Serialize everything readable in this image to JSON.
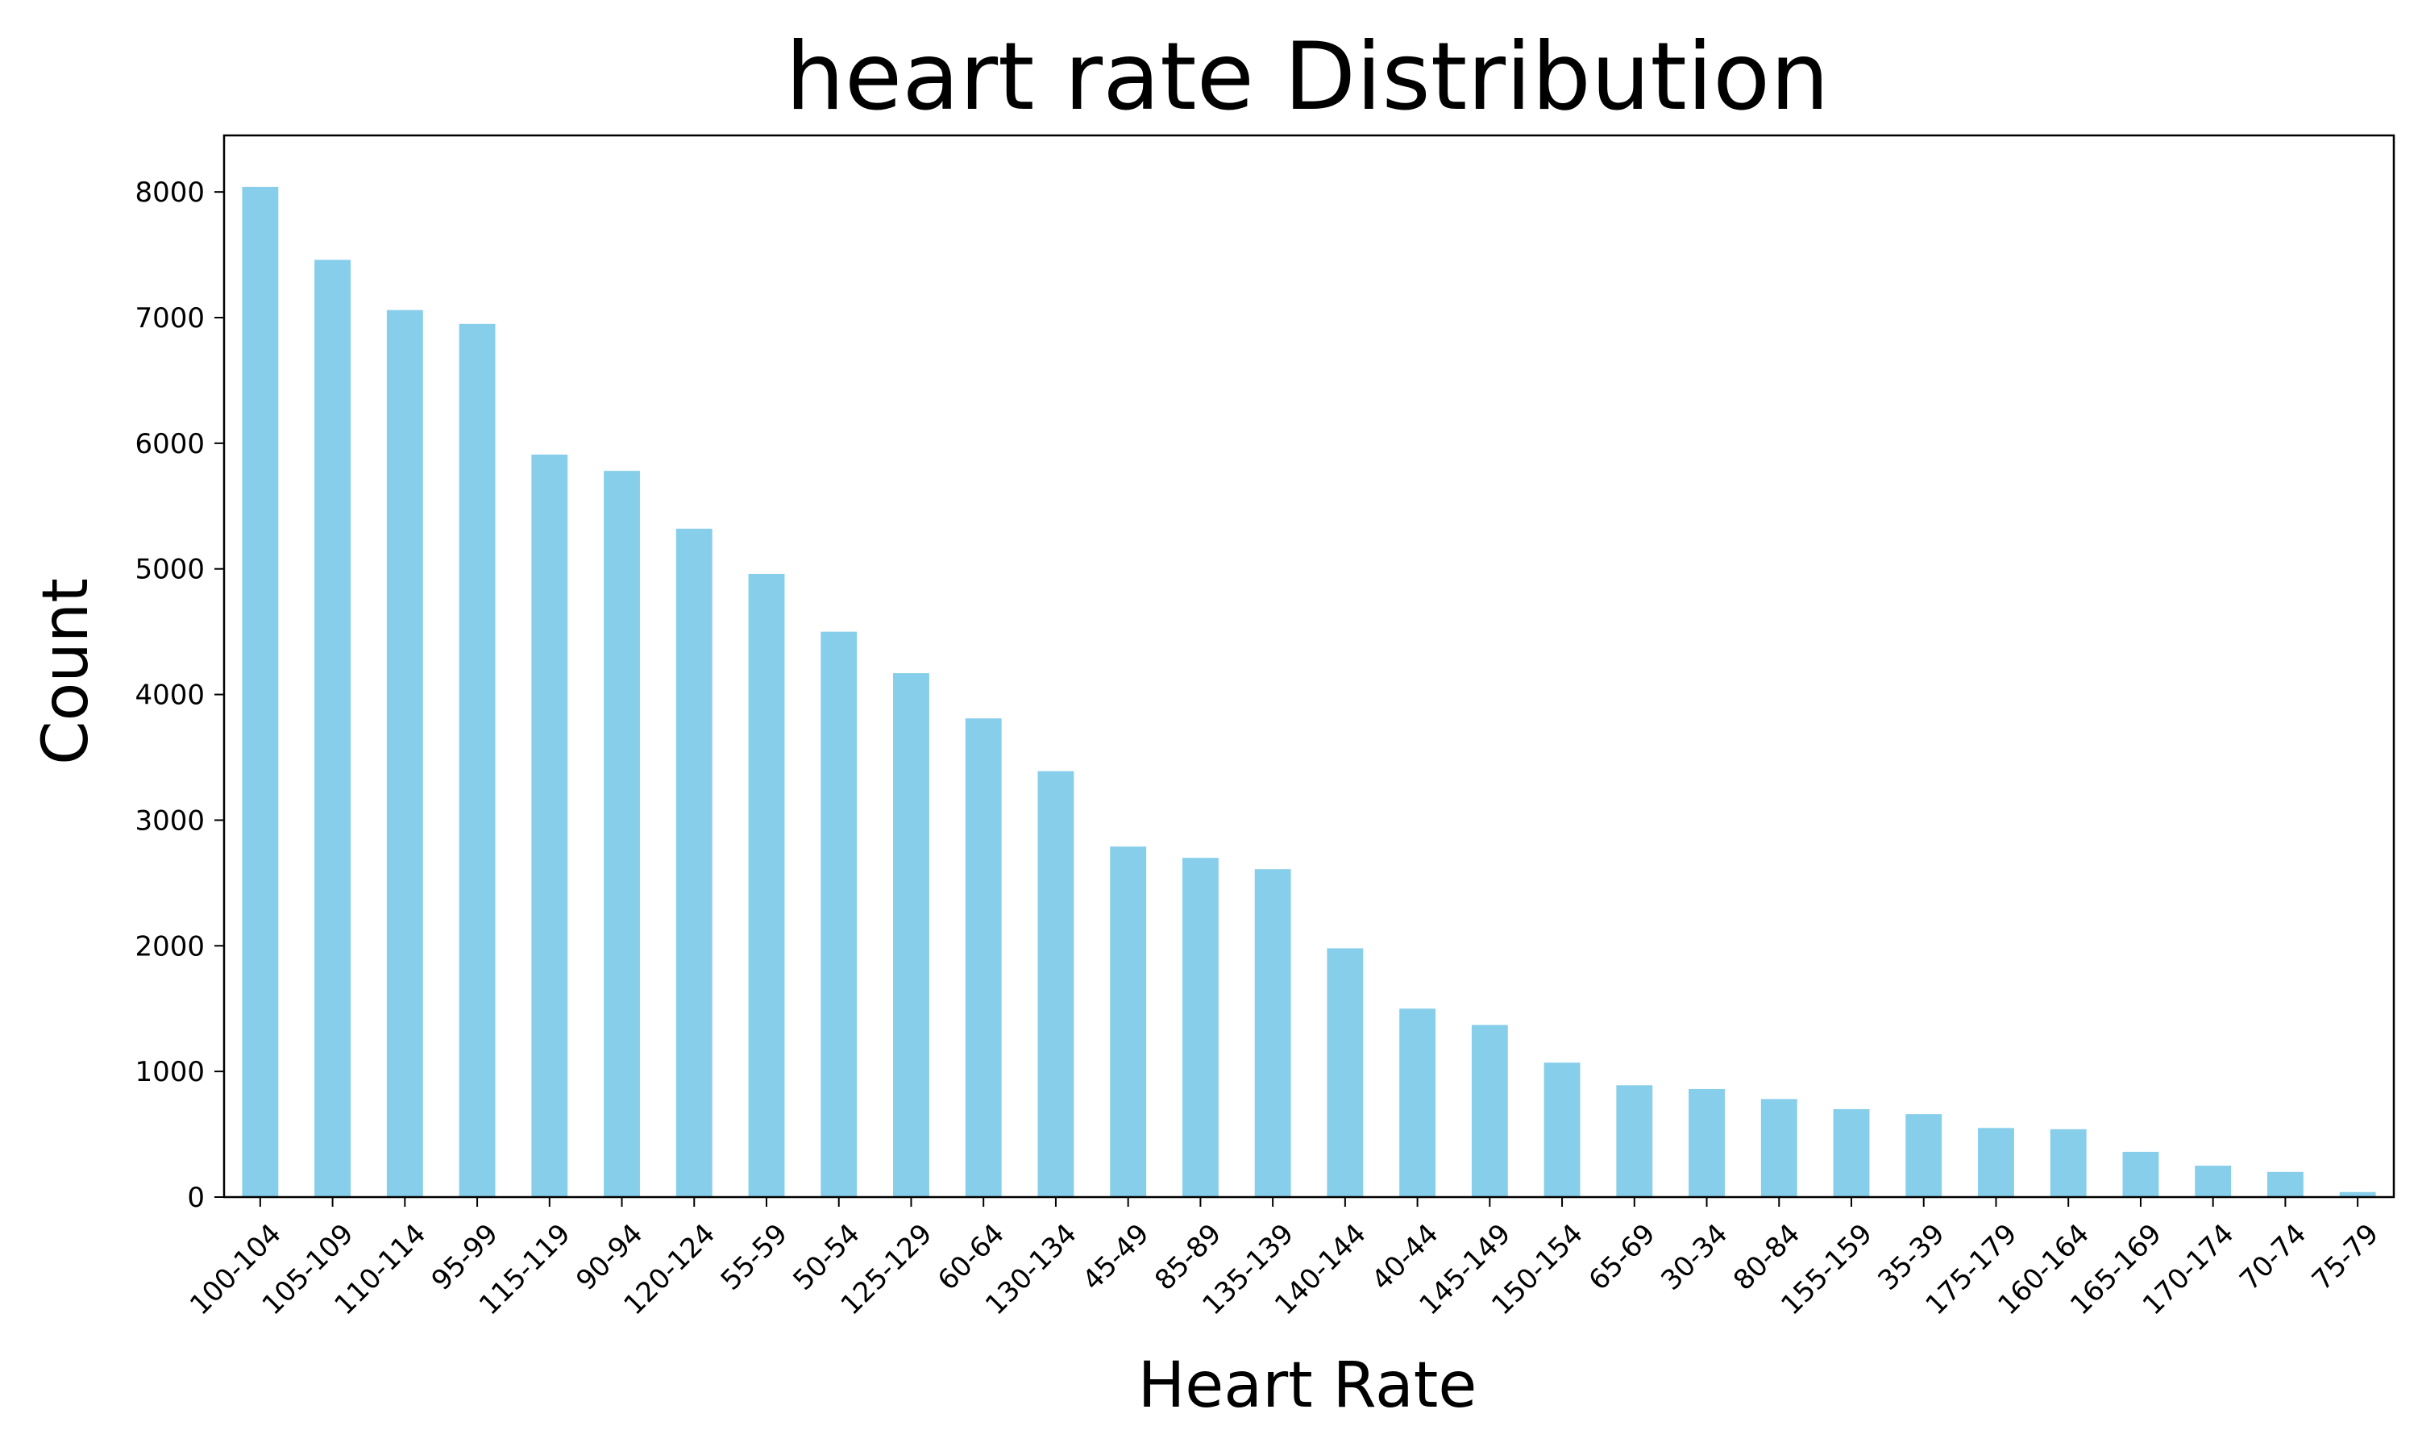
{
  "chart_data": {
    "type": "bar",
    "title": "heart rate Distribution",
    "xlabel": "Heart Rate",
    "ylabel": "Count",
    "categories": [
      "100-104",
      "105-109",
      "110-114",
      "95-99",
      "115-119",
      "90-94",
      "120-124",
      "55-59",
      "50-54",
      "125-129",
      "60-64",
      "130-134",
      "45-49",
      "85-89",
      "135-139",
      "140-144",
      "40-44",
      "145-149",
      "150-154",
      "65-69",
      "30-34",
      "80-84",
      "155-159",
      "35-39",
      "175-179",
      "160-164",
      "165-169",
      "170-174",
      "70-74",
      "75-79"
    ],
    "values": [
      8040,
      7460,
      7060,
      6950,
      5910,
      5780,
      5320,
      4960,
      4500,
      4170,
      3810,
      3390,
      2790,
      2700,
      2610,
      1980,
      1500,
      1370,
      1070,
      890,
      860,
      780,
      700,
      660,
      550,
      540,
      360,
      250,
      200,
      40
    ],
    "ylim": [
      0,
      8450
    ],
    "yticks": [
      0,
      1000,
      2000,
      3000,
      4000,
      5000,
      6000,
      7000,
      8000
    ],
    "ytick_labels": [
      "0",
      "1000",
      "2000",
      "3000",
      "4000",
      "5000",
      "6000",
      "7000",
      "8000"
    ],
    "grid": false,
    "bar_color": "#87CEEB"
  }
}
